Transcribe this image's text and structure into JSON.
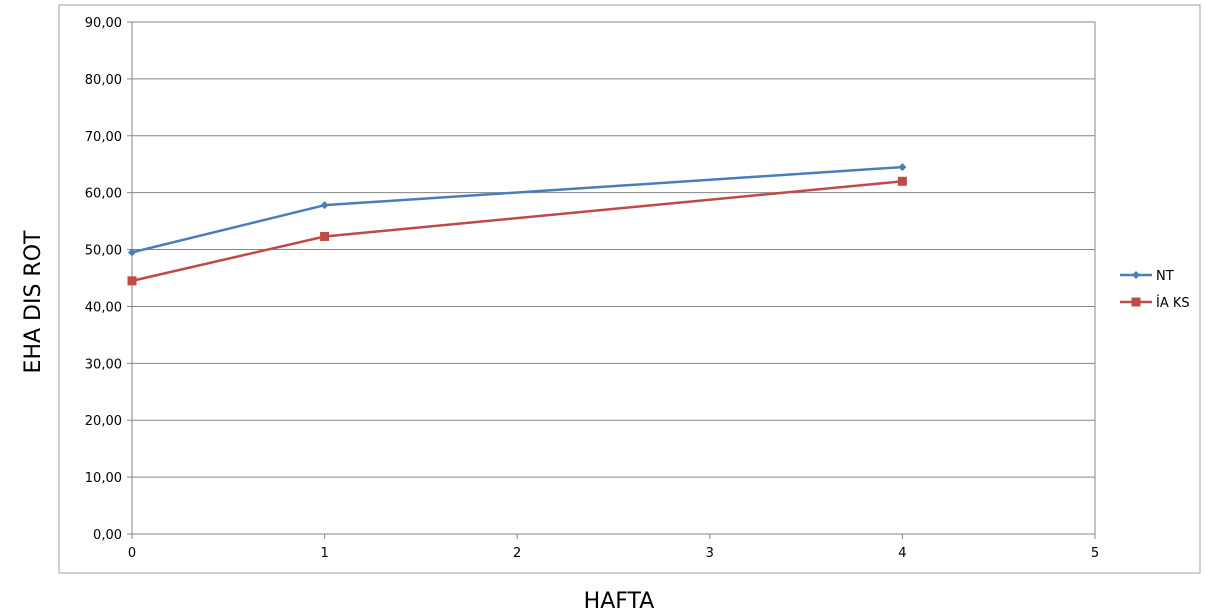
{
  "chart_data": {
    "type": "scatter",
    "xlabel": "HAFTA",
    "ylabel": "EHA  DIS ROT",
    "xlim": [
      0,
      5
    ],
    "ylim": [
      0,
      90
    ],
    "x_ticks": [
      "0",
      "1",
      "2",
      "3",
      "4",
      "5"
    ],
    "y_ticks": [
      "0,00",
      "10,00",
      "20,00",
      "30,00",
      "40,00",
      "50,00",
      "60,00",
      "70,00",
      "80,00",
      "90,00"
    ],
    "grid": "horizontal",
    "legend_position": "right",
    "series": [
      {
        "name": "NT",
        "color": "#4a7ebb",
        "marker": "diamond",
        "x": [
          0,
          1,
          4
        ],
        "y": [
          49.5,
          57.8,
          64.5
        ]
      },
      {
        "name": "İA KS",
        "color": "#be4b48",
        "marker": "square",
        "x": [
          0,
          1,
          4
        ],
        "y": [
          44.5,
          52.3,
          62.0
        ]
      }
    ]
  }
}
